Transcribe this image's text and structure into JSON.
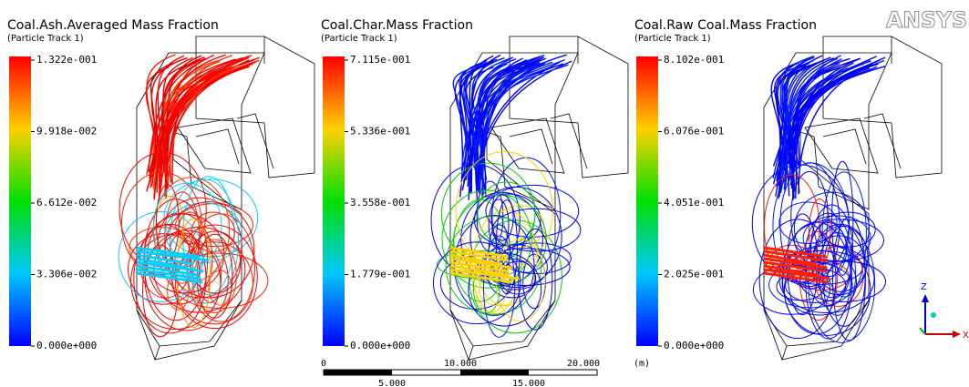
{
  "panels": [
    {
      "title": "Coal.Ash.Averaged Mass Fraction",
      "subtitle": "(Particle Track 1)",
      "legend_labels": [
        "1.322e-001",
        "9.918e-002",
        "6.612e-002",
        "3.306e-002",
        "0.000e+000"
      ]
    },
    {
      "title": "Coal.Char.Mass Fraction",
      "subtitle": "(Particle Track 1)",
      "legend_labels": [
        "7.115e-001",
        "5.336e-001",
        "3.558e-001",
        "1.779e-001",
        "0.000e+000"
      ]
    },
    {
      "title": "Coal.Raw Coal.Mass Fraction",
      "subtitle": "(Particle Track 1)",
      "legend_labels": [
        "8.102e-001",
        "6.076e-001",
        "4.051e-001",
        "2.025e-001",
        "0.000e+000"
      ]
    }
  ],
  "scale_bar": {
    "top_labels": [
      "0",
      "10.000",
      "20.000"
    ],
    "bottom_labels": [
      "5.000",
      "15.000"
    ],
    "unit": "(m)"
  },
  "axes": {
    "z": "Z",
    "x": "X"
  },
  "logo": "ANSYS"
}
